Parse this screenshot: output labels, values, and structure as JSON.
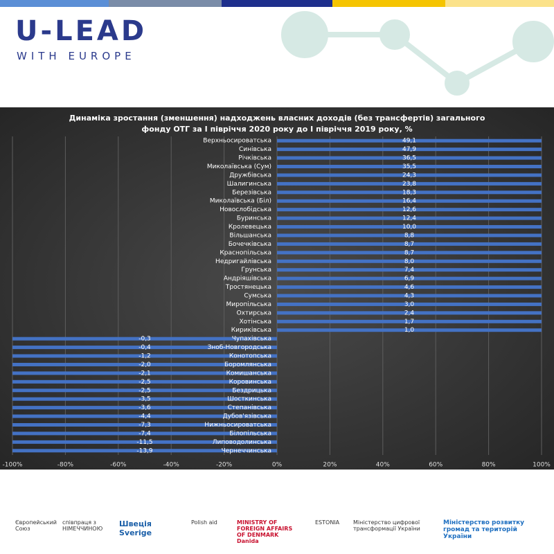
{
  "header": {
    "brand": "U-LEAD",
    "subtitle": "WITH EUROPE"
  },
  "footer": {
    "logos": [
      "Європейський Союз",
      "співпраця з НІМЕЧЧИНОЮ",
      "Швеція Sverige",
      "Polish aid",
      "MINISTRY OF FOREIGN AFFAIRS OF DENMARK Danida",
      "ESTONIA",
      "Міністерство цифрової трансформації України",
      "Міністерство розвитку громад та територій України"
    ]
  },
  "chart_data": {
    "type": "bar",
    "orientation": "horizontal",
    "stacking": "percent",
    "title": "Динаміка зростання (зменшення) надходжень  власних доходів (без трансфертів) загального",
    "title2": "фонду ОТГ за І півріччя 2020 року до  І півріччя 2019 року, %",
    "color": "#4472c4",
    "grid": true,
    "categories": [
      "Верхньосироватська",
      "Синівська",
      "Річківська",
      "Миколаївська (Сум)",
      "Дружбівська",
      "Шалигинська",
      "Березівська",
      "Миколаївська (Біл)",
      "Новослобідська",
      "Буринська",
      "Кролевецька",
      "Вільшанська",
      "Бочечківська",
      "Краснопільська",
      "Недригайлівська",
      "Грунська",
      "Андріяшівська",
      "Тростянецька",
      "Сумська",
      "Миропільська",
      "Охтирська",
      "Хотінська",
      "Кириківська",
      "Чупахівська",
      "Зноб-Новгородська",
      "Конотопська",
      "Боромлянська",
      "Комишанська",
      "Коровинська",
      "Бездрицька",
      "Шосткинська",
      "Степанівська",
      "Дубов'язівська",
      "Нижньосироватська",
      "Білопільська",
      "Липоводолинська",
      "Чернеччинська"
    ],
    "values": [
      49.1,
      47.9,
      36.5,
      35.5,
      24.3,
      23.8,
      18.3,
      16.4,
      12.6,
      12.4,
      10.0,
      8.8,
      8.7,
      8.7,
      8.0,
      7.4,
      6.9,
      4.6,
      4.3,
      3.0,
      2.4,
      1.7,
      1.0,
      -0.3,
      -0.4,
      -1.2,
      -2.0,
      -2.1,
      -2.5,
      -2.5,
      -3.5,
      -3.6,
      -4.4,
      -7.3,
      -7.4,
      -11.5,
      -13.9
    ],
    "value_labels": [
      "49,1",
      "47,9",
      "36,5",
      "35,5",
      "24,3",
      "23,8",
      "18,3",
      "16,4",
      "12,6",
      "12,4",
      "10,0",
      "8,8",
      "8,7",
      "8,7",
      "8,0",
      "7,4",
      "6,9",
      "4,6",
      "4,3",
      "3,0",
      "2,4",
      "1,7",
      "1,0",
      "-0,3",
      "-0,4",
      "-1,2",
      "-2,0",
      "-2,1",
      "-2,5",
      "-2,5",
      "-3,5",
      "-3,6",
      "-4,4",
      "-7,3",
      "-7,4",
      "-11,5",
      "-13,9"
    ],
    "xlim": [
      -100,
      100
    ],
    "xticks": [
      {
        "value": -100,
        "label": "-100%"
      },
      {
        "value": -80,
        "label": "-80%"
      },
      {
        "value": -60,
        "label": "-60%"
      },
      {
        "value": -40,
        "label": "-40%"
      },
      {
        "value": -20,
        "label": "-20%"
      },
      {
        "value": 0,
        "label": "0%"
      },
      {
        "value": 20,
        "label": "20%"
      },
      {
        "value": 40,
        "label": "40%"
      },
      {
        "value": 60,
        "label": "60%"
      },
      {
        "value": 80,
        "label": "80%"
      },
      {
        "value": 100,
        "label": "100%"
      }
    ]
  }
}
